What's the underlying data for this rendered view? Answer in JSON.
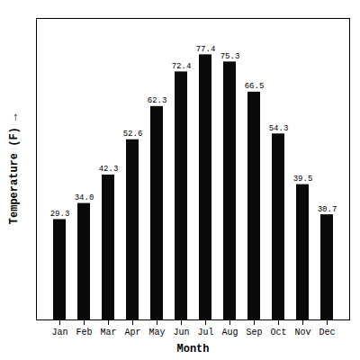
{
  "chart_data": {
    "type": "bar",
    "categories": [
      "Jan",
      "Feb",
      "Mar",
      "Apr",
      "May",
      "Jun",
      "Jul",
      "Aug",
      "Sep",
      "Oct",
      "Nov",
      "Dec"
    ],
    "values": [
      29.3,
      34.0,
      42.3,
      52.6,
      62.3,
      72.4,
      77.4,
      75.3,
      66.5,
      54.3,
      39.5,
      30.7
    ],
    "value_labels": [
      "29.3",
      "34.0",
      "42.3",
      "52.6",
      "62.3",
      "72.4",
      "77.4",
      "75.3",
      "66.5",
      "54.3",
      "39.5",
      "30.7"
    ],
    "color": "#0a0a0a",
    "x_label": "Month",
    "y_label": "Temperature (F)",
    "ylim": [
      0,
      88
    ],
    "data_labels": true,
    "tick_labels": "x",
    "grid": false
  }
}
